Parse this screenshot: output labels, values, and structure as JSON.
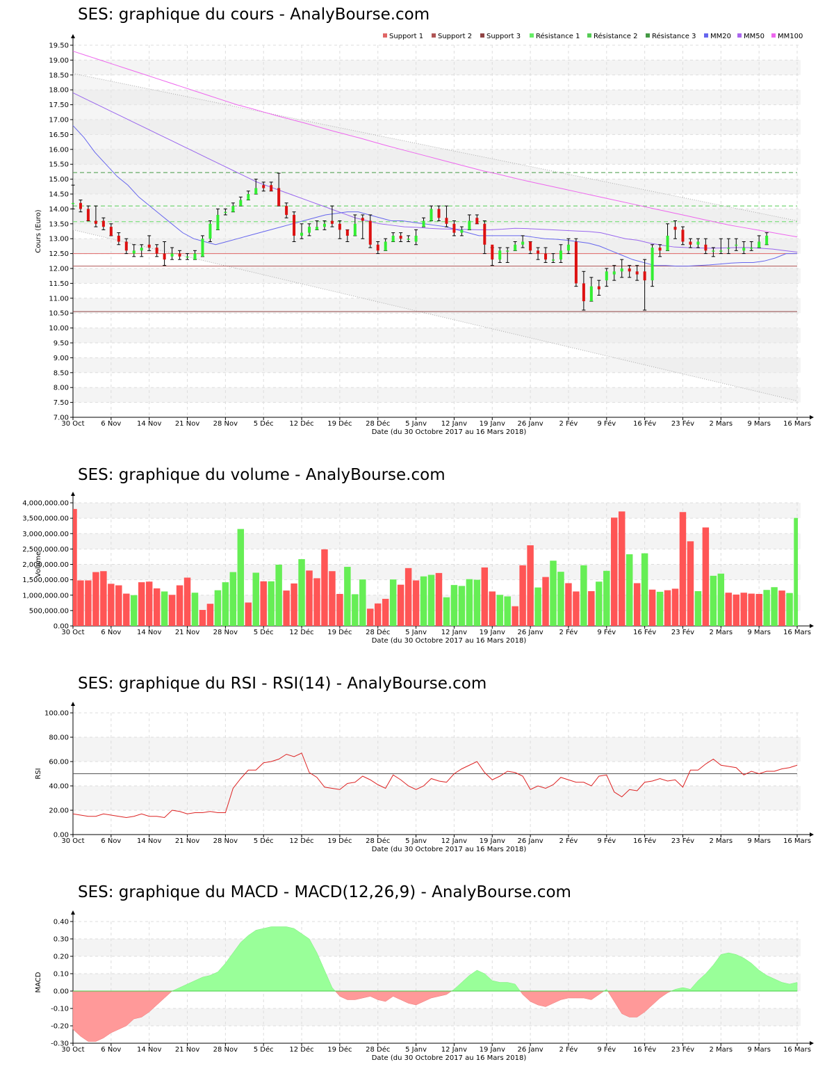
{
  "xaxis": {
    "labels": [
      "30 Oct",
      "6 Nov",
      "14 Nov",
      "21 Nov",
      "28 Nov",
      "5 Déc",
      "12 Déc",
      "19 Déc",
      "28 Déc",
      "5 Janv",
      "12 Janv",
      "19 Janv",
      "26 Janv",
      "2 Fév",
      "9 Fév",
      "16 Fév",
      "23 Fév",
      "2 Mars",
      "9 Mars",
      "16 Mars"
    ],
    "label_positions": [
      0,
      5,
      10,
      15,
      20,
      25,
      30,
      35,
      40,
      45,
      50,
      55,
      60,
      65,
      70,
      75,
      80,
      85,
      90,
      95
    ],
    "total_points": 96,
    "xlabel": "Date (du 30 Octobre 2017 au 16 Mars 2018)"
  },
  "legend": {
    "items": [
      {
        "label": "Support 1",
        "color": "#e06666"
      },
      {
        "label": "Support 2",
        "color": "#b05555"
      },
      {
        "label": "Support 3",
        "color": "#904444"
      },
      {
        "label": "Résistance 1",
        "color": "#66ee66"
      },
      {
        "label": "Résistance 2",
        "color": "#55cc55"
      },
      {
        "label": "Résistance 3",
        "color": "#449944"
      },
      {
        "label": "MM20",
        "color": "#6666ee"
      },
      {
        "label": "MM50",
        "color": "#aa66ee"
      },
      {
        "label": "MM100",
        "color": "#ee66ee"
      }
    ]
  },
  "chart_data": [
    {
      "type": "candlestick",
      "title": "SES: graphique du cours - AnalyBourse.com",
      "ylabel": "Cours (Euro)",
      "ylim": [
        7.0,
        19.5
      ],
      "yticks": [
        "7.00",
        "7.50",
        "8.00",
        "8.50",
        "9.00",
        "9.50",
        "10.00",
        "10.50",
        "11.00",
        "11.50",
        "12.00",
        "12.50",
        "13.00",
        "13.50",
        "14.00",
        "14.50",
        "15.00",
        "15.50",
        "16.00",
        "16.50",
        "17.00",
        "17.50",
        "18.00",
        "18.50",
        "19.00",
        "19.50"
      ],
      "close": [
        14.2,
        14.0,
        13.6,
        13.5,
        13.4,
        13.1,
        12.9,
        12.6,
        12.6,
        12.7,
        12.7,
        12.5,
        12.3,
        12.5,
        12.4,
        12.4,
        12.5,
        13.0,
        13.5,
        13.8,
        13.9,
        14.1,
        14.3,
        14.5,
        14.7,
        14.7,
        14.6,
        14.1,
        13.8,
        13.1,
        13.2,
        13.4,
        13.4,
        13.5,
        13.5,
        13.3,
        13.1,
        13.5,
        13.6,
        12.8,
        12.6,
        12.9,
        13.1,
        13.0,
        13.0,
        13.1,
        13.6,
        14.0,
        13.7,
        13.5,
        13.2,
        13.3,
        13.6,
        13.5,
        12.8,
        12.3,
        12.6,
        12.6,
        12.8,
        12.9,
        12.6,
        12.5,
        12.3,
        12.3,
        12.6,
        12.8,
        11.5,
        10.9,
        11.4,
        11.3,
        11.9,
        11.9,
        12.0,
        11.9,
        11.8,
        11.6,
        12.7,
        12.6,
        13.1,
        13.3,
        12.9,
        12.8,
        12.9,
        12.6,
        12.6,
        12.6,
        12.7,
        12.8,
        12.7,
        12.7,
        12.9,
        13.1
      ],
      "open": [
        14.2,
        14.2,
        14.0,
        13.6,
        13.6,
        13.4,
        13.1,
        12.9,
        12.5,
        12.6,
        12.8,
        12.7,
        12.5,
        12.4,
        12.5,
        12.4,
        12.3,
        12.4,
        13.0,
        13.3,
        13.9,
        13.9,
        14.1,
        14.3,
        14.5,
        14.8,
        14.8,
        14.7,
        14.1,
        13.8,
        13.1,
        13.2,
        13.3,
        13.4,
        13.6,
        13.5,
        13.3,
        13.1,
        13.7,
        13.6,
        12.8,
        12.6,
        12.9,
        13.1,
        13.0,
        12.9,
        13.4,
        13.6,
        14.0,
        13.7,
        13.5,
        13.2,
        13.3,
        13.7,
        13.5,
        12.8,
        12.3,
        12.6,
        12.6,
        12.8,
        12.9,
        12.6,
        12.5,
        12.3,
        12.3,
        12.6,
        12.9,
        11.5,
        10.9,
        11.4,
        11.6,
        11.8,
        11.9,
        12.0,
        11.9,
        11.9,
        11.6,
        12.7,
        12.6,
        13.4,
        13.3,
        12.9,
        12.8,
        12.8,
        12.6,
        12.6,
        12.7,
        12.8,
        12.6,
        12.7,
        12.7,
        12.8
      ],
      "high": [
        14.8,
        14.3,
        14.1,
        14.1,
        13.7,
        13.5,
        13.2,
        13.0,
        12.8,
        12.8,
        13.1,
        12.8,
        12.9,
        12.7,
        12.6,
        12.5,
        12.6,
        13.1,
        13.6,
        14.0,
        14.0,
        14.2,
        14.4,
        14.6,
        15.0,
        14.9,
        14.9,
        15.2,
        14.2,
        13.9,
        13.5,
        13.5,
        13.6,
        13.6,
        14.1,
        13.6,
        13.3,
        13.8,
        13.8,
        13.8,
        12.9,
        13.0,
        13.2,
        13.2,
        13.1,
        13.3,
        13.7,
        14.1,
        14.1,
        14.1,
        13.6,
        13.4,
        13.8,
        13.8,
        13.6,
        12.7,
        12.7,
        12.7,
        12.9,
        13.1,
        12.9,
        12.7,
        12.7,
        12.5,
        12.8,
        13.0,
        13.0,
        11.9,
        11.7,
        11.6,
        12.0,
        12.1,
        12.3,
        12.1,
        12.1,
        12.3,
        12.8,
        12.8,
        13.5,
        13.6,
        13.4,
        13.0,
        13.0,
        13.0,
        12.7,
        13.0,
        13.0,
        13.0,
        12.9,
        12.9,
        13.1,
        13.2
      ],
      "low": [
        14.0,
        13.9,
        13.6,
        13.4,
        13.3,
        13.1,
        12.8,
        12.5,
        12.4,
        12.4,
        12.6,
        12.4,
        12.1,
        12.3,
        12.3,
        12.3,
        12.3,
        12.4,
        12.9,
        13.3,
        13.8,
        13.9,
        14.1,
        14.3,
        14.5,
        14.6,
        14.6,
        14.1,
        13.7,
        12.9,
        13.0,
        13.1,
        13.3,
        13.3,
        13.4,
        13.0,
        12.9,
        13.1,
        13.0,
        12.7,
        12.5,
        12.6,
        12.9,
        12.9,
        12.9,
        12.8,
        13.4,
        13.6,
        13.6,
        13.4,
        13.1,
        13.1,
        13.3,
        13.5,
        12.5,
        12.1,
        12.2,
        12.2,
        12.6,
        12.7,
        12.5,
        12.3,
        12.2,
        12.2,
        12.2,
        12.5,
        11.4,
        10.6,
        10.9,
        11.1,
        11.4,
        11.6,
        11.7,
        11.7,
        11.6,
        10.6,
        11.4,
        12.4,
        12.6,
        13.0,
        12.8,
        12.7,
        12.7,
        12.5,
        12.4,
        12.5,
        12.5,
        12.6,
        12.5,
        12.6,
        12.7,
        12.8
      ],
      "mm20": [
        16.8,
        16.4,
        15.9,
        15.5,
        15.1,
        14.8,
        14.4,
        14.1,
        13.8,
        13.5,
        13.2,
        13.0,
        12.9,
        12.8,
        12.9,
        13.0,
        13.1,
        13.2,
        13.3,
        13.4,
        13.5,
        13.6,
        13.7,
        13.8,
        13.85,
        13.9,
        13.9,
        13.8,
        13.7,
        13.6,
        13.6,
        13.55,
        13.5,
        13.45,
        13.4,
        13.3,
        13.2,
        13.1,
        13.1,
        13.1,
        13.1,
        13.1,
        13.05,
        13.0,
        12.98,
        12.95,
        12.9,
        12.85,
        12.75,
        12.6,
        12.45,
        12.3,
        12.2,
        12.1,
        12.1,
        12.08,
        12.08,
        12.1,
        12.12,
        12.15,
        12.18,
        12.2,
        12.2,
        12.25,
        12.35,
        12.5,
        12.5
      ],
      "mm50": [
        17.9,
        17.7,
        17.5,
        17.3,
        17.1,
        16.9,
        16.7,
        16.5,
        16.3,
        16.1,
        15.9,
        15.7,
        15.5,
        15.3,
        15.1,
        14.9,
        14.75,
        14.6,
        14.45,
        14.3,
        14.15,
        14.0,
        13.85,
        13.7,
        13.6,
        13.5,
        13.45,
        13.4,
        13.38,
        13.35,
        13.33,
        13.32,
        13.31,
        13.3,
        13.3,
        13.32,
        13.35,
        13.34,
        13.32,
        13.3,
        13.28,
        13.26,
        13.24,
        13.2,
        13.1,
        13.0,
        12.95,
        12.85,
        12.78,
        12.72,
        12.7,
        12.69,
        12.68,
        12.69,
        12.7,
        12.7,
        12.68,
        12.65,
        12.6,
        12.55
      ],
      "mm100": [
        19.3,
        19.15,
        19.0,
        18.85,
        18.7,
        18.55,
        18.4,
        18.25,
        18.1,
        17.95,
        17.8,
        17.65,
        17.5,
        17.38,
        17.25,
        17.12,
        17.0,
        16.88,
        16.75,
        16.62,
        16.5,
        16.38,
        16.25,
        16.12,
        16.0,
        15.88,
        15.76,
        15.64,
        15.52,
        15.4,
        15.28,
        15.18,
        15.07,
        14.96,
        14.86,
        14.76,
        14.66,
        14.56,
        14.46,
        14.36,
        14.26,
        14.16,
        14.06,
        13.96,
        13.86,
        13.76,
        13.66,
        13.56,
        13.46,
        13.38,
        13.3,
        13.22,
        13.14,
        13.06
      ],
      "support_lines": [
        12.5,
        12.08,
        10.55
      ],
      "resistance_lines": [
        13.57,
        14.1,
        15.22
      ],
      "trend_upper": [
        18.55,
        13.6
      ],
      "trend_lower": [
        13.3,
        7.55
      ]
    },
    {
      "type": "bar",
      "title": "SES: graphique du volume - AnalyBourse.com",
      "ylabel": "Volume",
      "ylim": [
        0,
        4000000
      ],
      "yticks": [
        "0.00",
        "500,000.00",
        "1,000,000.00",
        "1,500,000.00",
        "2,000,000.00",
        "2,500,000.00",
        "3,000,000.00",
        "3,500,000.00",
        "4,000,000.00"
      ],
      "values": [
        3800000,
        1480000,
        1480000,
        1750000,
        1780000,
        1370000,
        1320000,
        1050000,
        1000000,
        1420000,
        1440000,
        1220000,
        1120000,
        1010000,
        1320000,
        1570000,
        1080000,
        520000,
        720000,
        1160000,
        1420000,
        1750000,
        3150000,
        760000,
        1730000,
        1450000,
        1450000,
        1990000,
        1150000,
        1380000,
        2170000,
        1800000,
        1550000,
        2490000,
        1780000,
        1040000,
        1920000,
        1030000,
        1510000,
        560000,
        730000,
        880000,
        1510000,
        1340000,
        1880000,
        1480000,
        1610000,
        1660000,
        1720000,
        930000,
        1330000,
        1300000,
        1520000,
        1500000,
        1900000,
        1120000,
        1010000,
        960000,
        640000,
        1970000,
        2620000,
        1250000,
        1590000,
        2120000,
        1760000,
        1390000,
        1120000,
        1970000,
        1130000,
        1440000,
        1790000,
        3520000,
        3720000,
        2330000,
        1390000,
        2360000,
        1180000,
        1110000,
        1160000,
        1210000,
        3700000,
        2750000,
        1130000,
        3200000,
        1630000,
        1700000,
        1080000,
        1020000,
        1080000,
        1050000,
        1040000,
        1170000,
        1260000,
        1150000,
        1070000,
        3510000
      ],
      "colors": [
        "r",
        "r",
        "r",
        "r",
        "r",
        "r",
        "r",
        "r",
        "g",
        "r",
        "r",
        "r",
        "g",
        "r",
        "r",
        "r",
        "g",
        "r",
        "r",
        "g",
        "g",
        "g",
        "g",
        "r",
        "g",
        "r",
        "g",
        "g",
        "r",
        "r",
        "g",
        "r",
        "r",
        "r",
        "r",
        "r",
        "g",
        "g",
        "g",
        "r",
        "r",
        "r",
        "g",
        "r",
        "r",
        "r",
        "g",
        "g",
        "r",
        "g",
        "g",
        "g",
        "g",
        "g",
        "r",
        "r",
        "g",
        "g",
        "r",
        "r",
        "r",
        "g",
        "r",
        "g",
        "g",
        "r",
        "r",
        "g",
        "r",
        "g",
        "g",
        "r",
        "r",
        "g",
        "r",
        "g",
        "r",
        "g",
        "r",
        "r",
        "r",
        "r",
        "g",
        "r",
        "g",
        "g",
        "r",
        "r",
        "r",
        "r",
        "r",
        "g",
        "g",
        "r",
        "g",
        "g"
      ]
    },
    {
      "type": "line",
      "title": "SES: graphique du RSI - RSI(14) - AnalyBourse.com",
      "ylabel": "RSI",
      "ylim": [
        0,
        100
      ],
      "yticks": [
        "0.00",
        "20.00",
        "40.00",
        "60.00",
        "80.00",
        "100.00"
      ],
      "reference_line": 50,
      "values": [
        17,
        16,
        15,
        15,
        17,
        16,
        15,
        14,
        15,
        17,
        15,
        15,
        14,
        20,
        19,
        17,
        18,
        18,
        19,
        18,
        18,
        38,
        46,
        53,
        53,
        59,
        60,
        62,
        66,
        64,
        67,
        51,
        47,
        39,
        38,
        37,
        42,
        43,
        48,
        45,
        41,
        38,
        49,
        45,
        40,
        37,
        40,
        46,
        44,
        43,
        50,
        54,
        57,
        60,
        51,
        45,
        48,
        52,
        51,
        48,
        37,
        40,
        38,
        41,
        47,
        45,
        43,
        43,
        40,
        48,
        49,
        35,
        31,
        37,
        36,
        43,
        44,
        46,
        44,
        45,
        39,
        53,
        53,
        58,
        62,
        57,
        56,
        55,
        49,
        52,
        50,
        52,
        52,
        54,
        55,
        57
      ]
    },
    {
      "type": "area",
      "title": "SES: graphique du MACD - MACD(12,26,9) - AnalyBourse.com",
      "ylabel": "MACD",
      "ylim": [
        -0.3,
        0.4
      ],
      "yticks": [
        "-0.30",
        "-0.20",
        "-0.10",
        "0.00",
        "0.10",
        "0.20",
        "0.30",
        "0.40"
      ],
      "values": [
        -0.22,
        -0.26,
        -0.29,
        -0.29,
        -0.27,
        -0.24,
        -0.22,
        -0.2,
        -0.16,
        -0.15,
        -0.12,
        -0.08,
        -0.04,
        0.0,
        0.02,
        0.04,
        0.06,
        0.08,
        0.09,
        0.11,
        0.16,
        0.22,
        0.28,
        0.32,
        0.35,
        0.36,
        0.37,
        0.37,
        0.37,
        0.36,
        0.33,
        0.3,
        0.22,
        0.12,
        0.02,
        -0.03,
        -0.05,
        -0.05,
        -0.04,
        -0.03,
        -0.05,
        -0.06,
        -0.03,
        -0.05,
        -0.07,
        -0.08,
        -0.06,
        -0.04,
        -0.03,
        -0.02,
        0.01,
        0.05,
        0.09,
        0.12,
        0.1,
        0.06,
        0.05,
        0.05,
        0.04,
        -0.02,
        -0.06,
        -0.08,
        -0.09,
        -0.07,
        -0.05,
        -0.04,
        -0.04,
        -0.04,
        -0.05,
        -0.02,
        0.01,
        -0.06,
        -0.13,
        -0.15,
        -0.15,
        -0.12,
        -0.08,
        -0.04,
        -0.01,
        0.01,
        0.02,
        0.01,
        0.06,
        0.1,
        0.15,
        0.21,
        0.22,
        0.21,
        0.19,
        0.16,
        0.12,
        0.09,
        0.07,
        0.05,
        0.04,
        0.05
      ]
    }
  ]
}
